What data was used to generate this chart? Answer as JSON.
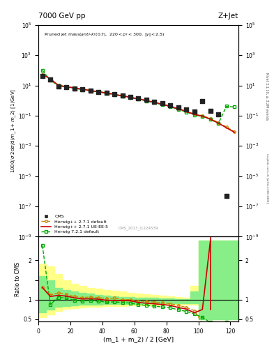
{
  "title_left": "7000 GeV pp",
  "title_right": "Z+Jet",
  "ylabel_main": "1000/σ 2dσ/d(m_1 + m_2) [1/GeV]",
  "ylabel_ratio": "Ratio to CMS",
  "xlabel": "(m_1 + m_2) / 2 [GeV]",
  "watermark": "CMS_2013_I1224539",
  "right_label": "Rivet 3.1.10, ≥ 3.2M events",
  "arxiv_label": "[arXiv:1306.3436]",
  "cms_data_x": [
    2.5,
    7.5,
    12.5,
    17.5,
    22.5,
    27.5,
    32.5,
    37.5,
    42.5,
    47.5,
    52.5,
    57.5,
    62.5,
    67.5,
    72.5,
    77.5,
    82.5,
    87.5,
    92.5,
    97.5,
    102.5,
    107.5,
    112.5,
    117.5
  ],
  "cms_data_y": [
    42.0,
    25.0,
    9.0,
    7.5,
    6.5,
    5.5,
    4.5,
    3.8,
    3.2,
    2.6,
    2.1,
    1.7,
    1.4,
    1.1,
    0.85,
    0.65,
    0.48,
    0.35,
    0.25,
    0.18,
    0.9,
    0.2,
    0.12,
    5e-07
  ],
  "hw271_default_x": [
    2.5,
    7.5,
    12.5,
    17.5,
    22.5,
    27.5,
    32.5,
    37.5,
    42.5,
    47.5,
    52.5,
    57.5,
    62.5,
    67.5,
    72.5,
    77.5,
    82.5,
    87.5,
    92.5,
    97.5,
    102.5,
    107.5,
    112.5,
    117.5,
    122.5
  ],
  "hw271_default_y": [
    55.0,
    28.0,
    10.5,
    8.5,
    7.0,
    5.8,
    4.8,
    4.0,
    3.3,
    2.7,
    2.1,
    1.7,
    1.35,
    1.05,
    0.8,
    0.6,
    0.43,
    0.3,
    0.2,
    0.13,
    0.1,
    0.065,
    0.035,
    0.018,
    0.009
  ],
  "hw271_uee5_x": [
    2.5,
    7.5,
    12.5,
    17.5,
    22.5,
    27.5,
    32.5,
    37.5,
    42.5,
    47.5,
    52.5,
    57.5,
    62.5,
    67.5,
    72.5,
    77.5,
    82.5,
    87.5,
    92.5,
    97.5,
    102.5,
    107.5,
    112.5,
    117.5,
    122.5
  ],
  "hw271_uee5_y": [
    55.0,
    27.0,
    10.0,
    8.2,
    6.8,
    5.6,
    4.6,
    3.85,
    3.15,
    2.55,
    2.05,
    1.65,
    1.3,
    1.0,
    0.76,
    0.57,
    0.41,
    0.28,
    0.19,
    0.12,
    0.095,
    0.06,
    0.032,
    0.016,
    0.008
  ],
  "hw721_default_x": [
    2.5,
    7.5,
    12.5,
    17.5,
    22.5,
    27.5,
    32.5,
    37.5,
    42.5,
    47.5,
    52.5,
    57.5,
    62.5,
    67.5,
    72.5,
    77.5,
    82.5,
    87.5,
    92.5,
    97.5,
    102.5,
    107.5,
    112.5,
    117.5,
    122.5
  ],
  "hw721_default_y": [
    100.0,
    22.0,
    9.5,
    7.8,
    6.4,
    5.3,
    4.4,
    3.65,
    3.0,
    2.45,
    1.95,
    1.55,
    1.22,
    0.94,
    0.71,
    0.53,
    0.38,
    0.26,
    0.175,
    0.115,
    0.088,
    0.058,
    0.03,
    0.42,
    0.38
  ],
  "ratio_hw271_default_x": [
    2.5,
    7.5,
    12.5,
    17.5,
    22.5,
    27.5,
    32.5,
    37.5,
    42.5,
    47.5,
    52.5,
    57.5,
    62.5,
    67.5,
    72.5,
    77.5,
    82.5,
    87.5,
    92.5,
    97.5,
    102.5,
    107.5,
    112.5
  ],
  "ratio_hw271_default_y": [
    1.31,
    1.12,
    1.17,
    1.13,
    1.08,
    1.05,
    1.07,
    1.05,
    1.03,
    1.04,
    1.0,
    1.0,
    0.96,
    0.955,
    0.94,
    0.92,
    0.896,
    0.857,
    0.8,
    0.72,
    0.4,
    0.296,
    0.318
  ],
  "ratio_hw271_uee5_x": [
    2.5,
    7.5,
    12.5,
    17.5,
    22.5,
    27.5,
    32.5,
    37.5,
    42.5,
    47.5,
    52.5,
    57.5,
    62.5,
    67.5,
    72.5,
    77.5,
    82.5,
    87.5,
    92.5,
    97.5,
    102.5,
    107.5,
    112.5,
    117.5,
    122.5
  ],
  "ratio_hw271_uee5_y": [
    1.31,
    1.08,
    1.11,
    1.09,
    1.046,
    1.018,
    1.022,
    1.013,
    0.984,
    0.981,
    0.976,
    0.971,
    0.929,
    0.909,
    0.894,
    0.877,
    0.854,
    0.8,
    0.76,
    0.667,
    0.75,
    2.5,
    null,
    null,
    null
  ],
  "ratio_hw721_default_x": [
    2.5,
    7.5,
    12.5,
    17.5,
    22.5,
    27.5,
    32.5,
    37.5,
    42.5,
    47.5,
    52.5,
    57.5,
    62.5,
    67.5,
    72.5,
    77.5,
    82.5,
    87.5,
    92.5,
    97.5,
    102.5,
    107.5,
    112.5,
    117.5,
    122.5
  ],
  "ratio_hw721_default_y": [
    2.38,
    0.88,
    1.056,
    1.04,
    0.985,
    0.964,
    0.978,
    0.961,
    0.938,
    0.942,
    0.929,
    0.912,
    0.871,
    0.855,
    0.835,
    0.815,
    0.792,
    0.743,
    0.7,
    0.639,
    0.55,
    0.42,
    0.38,
    0.42,
    0.38
  ],
  "yellow_band_edges": [
    0,
    5,
    10,
    15,
    20,
    25,
    30,
    35,
    40,
    45,
    50,
    55,
    60,
    65,
    70,
    75,
    80,
    85,
    90,
    95,
    100,
    105,
    110,
    115,
    120,
    125
  ],
  "yellow_band_low": [
    0.55,
    0.62,
    0.72,
    0.76,
    0.78,
    0.8,
    0.81,
    0.82,
    0.83,
    0.84,
    0.84,
    0.85,
    0.85,
    0.86,
    0.86,
    0.87,
    0.87,
    0.87,
    0.87,
    0.87,
    0.5,
    0.5,
    0.5,
    0.5,
    0.5,
    0.5
  ],
  "yellow_band_high": [
    1.9,
    1.85,
    1.65,
    1.5,
    1.4,
    1.35,
    1.3,
    1.27,
    1.24,
    1.22,
    1.2,
    1.18,
    1.16,
    1.14,
    1.12,
    1.1,
    1.08,
    1.06,
    1.04,
    1.35,
    2.5,
    2.5,
    2.5,
    2.5,
    2.5,
    2.5
  ],
  "green_band_edges": [
    0,
    5,
    10,
    15,
    20,
    25,
    30,
    35,
    40,
    45,
    50,
    55,
    60,
    65,
    70,
    75,
    80,
    85,
    90,
    95,
    100,
    105,
    110,
    115,
    120,
    125
  ],
  "green_band_low": [
    0.68,
    0.74,
    0.82,
    0.84,
    0.86,
    0.87,
    0.875,
    0.88,
    0.885,
    0.89,
    0.89,
    0.895,
    0.895,
    0.9,
    0.9,
    0.905,
    0.905,
    0.905,
    0.905,
    0.905,
    0.5,
    0.5,
    0.5,
    0.5,
    0.5,
    0.5
  ],
  "green_band_high": [
    1.6,
    1.5,
    1.3,
    1.24,
    1.2,
    1.17,
    1.15,
    1.12,
    1.1,
    1.08,
    1.07,
    1.06,
    1.055,
    1.05,
    1.04,
    1.03,
    1.025,
    1.015,
    1.01,
    1.2,
    2.5,
    2.5,
    2.5,
    2.5,
    2.5,
    2.5
  ],
  "color_cms": "#222222",
  "color_hw271_default": "#cc8800",
  "color_hw271_uee5": "#cc0000",
  "color_hw721_default": "#00aa00",
  "color_yellow_band": "#ffff88",
  "color_green_band": "#88ee88",
  "ylim_main": [
    1e-09,
    100000.0
  ],
  "ylim_ratio": [
    0.45,
    2.6
  ],
  "xlim": [
    0,
    125
  ]
}
